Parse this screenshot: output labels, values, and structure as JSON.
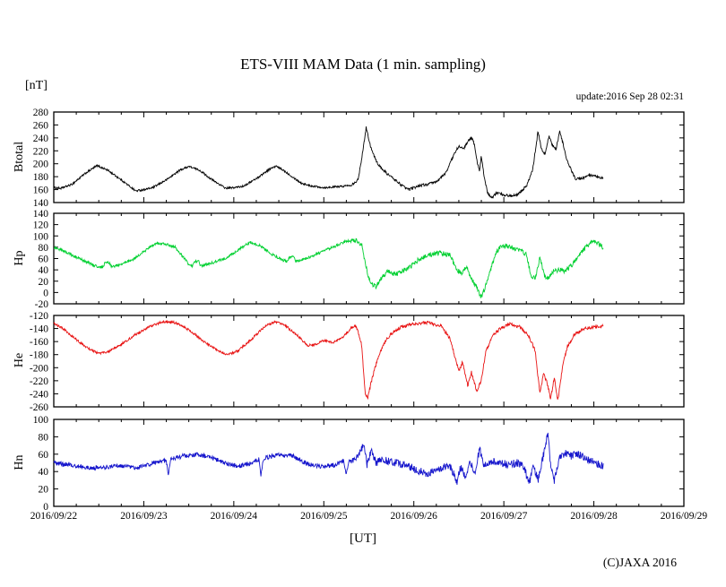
{
  "title": "ETS-VIII MAM Data (1 min. sampling)",
  "unit_label": "[nT]",
  "update_label": "update:2016 Sep 28 02:31",
  "x_axis_label": "[UT]",
  "copyright": "(C)JAXA 2016",
  "chart_data": {
    "type": "line",
    "title": "ETS-VIII MAM Data (1 min. sampling)",
    "xlabel": "[UT]",
    "unit": "[nT]",
    "grid": false,
    "legend_position": "none",
    "x_unit": "days since 2016/09/22 00:00 UT",
    "x_range_days": [
      0,
      7
    ],
    "x_tick_labels": [
      "2016/09/22",
      "2016/09/23",
      "2016/09/24",
      "2016/09/25",
      "2016/09/26",
      "2016/09/27",
      "2016/09/28",
      "2016/09/29"
    ],
    "x_major_tick_days": 1,
    "x_minor_tick_days": 0.25,
    "data_end_day": 6.105,
    "disturbance_start_day": 3.3,
    "panels": [
      {
        "name": "Btotal",
        "color": "#000000",
        "ylim": [
          140,
          280
        ],
        "ytick_step": 20,
        "noise_base": 1.5,
        "noise_disturbed_factor": 1.4,
        "keypoints": [
          [
            0,
            163
          ],
          [
            0.08,
            162
          ],
          [
            0.2,
            168
          ],
          [
            0.35,
            185
          ],
          [
            0.48,
            197
          ],
          [
            0.6,
            190
          ],
          [
            0.75,
            175
          ],
          [
            0.91,
            158
          ],
          [
            1.0,
            160
          ],
          [
            1.1,
            163
          ],
          [
            1.25,
            175
          ],
          [
            1.4,
            190
          ],
          [
            1.5,
            196
          ],
          [
            1.62,
            190
          ],
          [
            1.75,
            176
          ],
          [
            1.91,
            162
          ],
          [
            2.0,
            163
          ],
          [
            2.1,
            165
          ],
          [
            2.25,
            177
          ],
          [
            2.4,
            192
          ],
          [
            2.47,
            196
          ],
          [
            2.55,
            190
          ],
          [
            2.65,
            180
          ],
          [
            2.75,
            170
          ],
          [
            2.85,
            166
          ],
          [
            3.0,
            163
          ],
          [
            3.1,
            164
          ],
          [
            3.2,
            165
          ],
          [
            3.3,
            167
          ],
          [
            3.38,
            175
          ],
          [
            3.44,
            225
          ],
          [
            3.47,
            257
          ],
          [
            3.5,
            238
          ],
          [
            3.53,
            222
          ],
          [
            3.58,
            205
          ],
          [
            3.62,
            196
          ],
          [
            3.7,
            185
          ],
          [
            3.8,
            174
          ],
          [
            3.9,
            163
          ],
          [
            3.95,
            160
          ],
          [
            4.05,
            166
          ],
          [
            4.15,
            168
          ],
          [
            4.25,
            172
          ],
          [
            4.35,
            185
          ],
          [
            4.45,
            215
          ],
          [
            4.5,
            228
          ],
          [
            4.55,
            222
          ],
          [
            4.6,
            235
          ],
          [
            4.65,
            240
          ],
          [
            4.68,
            225
          ],
          [
            4.7,
            205
          ],
          [
            4.73,
            190
          ],
          [
            4.75,
            212
          ],
          [
            4.78,
            180
          ],
          [
            4.82,
            155
          ],
          [
            4.87,
            147
          ],
          [
            4.92,
            155
          ],
          [
            5.0,
            152
          ],
          [
            5.08,
            150
          ],
          [
            5.15,
            153
          ],
          [
            5.25,
            165
          ],
          [
            5.32,
            190
          ],
          [
            5.38,
            250
          ],
          [
            5.42,
            222
          ],
          [
            5.46,
            215
          ],
          [
            5.5,
            243
          ],
          [
            5.54,
            228
          ],
          [
            5.58,
            222
          ],
          [
            5.62,
            250
          ],
          [
            5.66,
            230
          ],
          [
            5.7,
            205
          ],
          [
            5.75,
            190
          ],
          [
            5.8,
            176
          ],
          [
            5.88,
            178
          ],
          [
            5.95,
            182
          ],
          [
            6.02,
            180
          ],
          [
            6.105,
            177
          ]
        ]
      },
      {
        "name": "Hp",
        "color": "#00d030",
        "ylim": [
          -20,
          140
        ],
        "ytick_step": 20,
        "noise_base": 2.4,
        "noise_disturbed_factor": 1.8,
        "keypoints": [
          [
            0,
            80
          ],
          [
            0.1,
            74
          ],
          [
            0.2,
            66
          ],
          [
            0.35,
            55
          ],
          [
            0.48,
            46
          ],
          [
            0.55,
            45
          ],
          [
            0.57,
            53
          ],
          [
            0.62,
            53
          ],
          [
            0.64,
            45
          ],
          [
            0.75,
            50
          ],
          [
            0.9,
            60
          ],
          [
            1.05,
            78
          ],
          [
            1.15,
            87
          ],
          [
            1.25,
            85
          ],
          [
            1.35,
            80
          ],
          [
            1.5,
            50
          ],
          [
            1.54,
            47
          ],
          [
            1.56,
            55
          ],
          [
            1.61,
            55
          ],
          [
            1.63,
            47
          ],
          [
            1.75,
            52
          ],
          [
            1.9,
            60
          ],
          [
            2.05,
            75
          ],
          [
            2.18,
            89
          ],
          [
            2.3,
            82
          ],
          [
            2.45,
            65
          ],
          [
            2.55,
            57
          ],
          [
            2.6,
            55
          ],
          [
            2.62,
            63
          ],
          [
            2.67,
            63
          ],
          [
            2.69,
            55
          ],
          [
            2.8,
            60
          ],
          [
            2.95,
            70
          ],
          [
            3.1,
            80
          ],
          [
            3.25,
            91
          ],
          [
            3.35,
            93
          ],
          [
            3.42,
            85
          ],
          [
            3.47,
            45
          ],
          [
            3.52,
            15
          ],
          [
            3.58,
            10
          ],
          [
            3.65,
            28
          ],
          [
            3.72,
            38
          ],
          [
            3.78,
            32
          ],
          [
            3.85,
            36
          ],
          [
            3.95,
            44
          ],
          [
            4.05,
            58
          ],
          [
            4.15,
            66
          ],
          [
            4.3,
            70
          ],
          [
            4.4,
            66
          ],
          [
            4.48,
            40
          ],
          [
            4.53,
            35
          ],
          [
            4.58,
            45
          ],
          [
            4.64,
            25
          ],
          [
            4.7,
            8
          ],
          [
            4.75,
            -8
          ],
          [
            4.8,
            12
          ],
          [
            4.85,
            40
          ],
          [
            4.92,
            72
          ],
          [
            4.98,
            83
          ],
          [
            5.08,
            80
          ],
          [
            5.18,
            74
          ],
          [
            5.25,
            68
          ],
          [
            5.3,
            30
          ],
          [
            5.35,
            25
          ],
          [
            5.4,
            62
          ],
          [
            5.45,
            30
          ],
          [
            5.5,
            25
          ],
          [
            5.55,
            38
          ],
          [
            5.62,
            40
          ],
          [
            5.68,
            38
          ],
          [
            5.75,
            48
          ],
          [
            5.85,
            68
          ],
          [
            5.93,
            84
          ],
          [
            6.0,
            90
          ],
          [
            6.06,
            85
          ],
          [
            6.105,
            79
          ]
        ]
      },
      {
        "name": "He",
        "color": "#e81212",
        "ylim": [
          -260,
          -120
        ],
        "ytick_step": 20,
        "noise_base": 1.8,
        "noise_disturbed_factor": 1.4,
        "keypoints": [
          [
            0,
            -132
          ],
          [
            0.1,
            -140
          ],
          [
            0.25,
            -157
          ],
          [
            0.4,
            -172
          ],
          [
            0.5,
            -178
          ],
          [
            0.62,
            -175
          ],
          [
            0.75,
            -164
          ],
          [
            0.9,
            -150
          ],
          [
            1.05,
            -138
          ],
          [
            1.2,
            -130
          ],
          [
            1.35,
            -131
          ],
          [
            1.5,
            -142
          ],
          [
            1.65,
            -158
          ],
          [
            1.8,
            -172
          ],
          [
            1.93,
            -180
          ],
          [
            2.05,
            -174
          ],
          [
            2.2,
            -156
          ],
          [
            2.35,
            -136
          ],
          [
            2.45,
            -130
          ],
          [
            2.55,
            -133
          ],
          [
            2.7,
            -150
          ],
          [
            2.82,
            -166
          ],
          [
            2.92,
            -164
          ],
          [
            3.0,
            -158
          ],
          [
            3.1,
            -162
          ],
          [
            3.2,
            -155
          ],
          [
            3.3,
            -140
          ],
          [
            3.36,
            -136
          ],
          [
            3.42,
            -165
          ],
          [
            3.46,
            -240
          ],
          [
            3.49,
            -246
          ],
          [
            3.53,
            -220
          ],
          [
            3.6,
            -185
          ],
          [
            3.68,
            -160
          ],
          [
            3.75,
            -148
          ],
          [
            3.85,
            -138
          ],
          [
            4.0,
            -133
          ],
          [
            4.15,
            -131
          ],
          [
            4.3,
            -136
          ],
          [
            4.4,
            -155
          ],
          [
            4.45,
            -180
          ],
          [
            4.5,
            -205
          ],
          [
            4.54,
            -192
          ],
          [
            4.6,
            -228
          ],
          [
            4.64,
            -207
          ],
          [
            4.7,
            -237
          ],
          [
            4.75,
            -218
          ],
          [
            4.8,
            -175
          ],
          [
            4.88,
            -150
          ],
          [
            4.98,
            -138
          ],
          [
            5.08,
            -133
          ],
          [
            5.18,
            -138
          ],
          [
            5.28,
            -152
          ],
          [
            5.35,
            -175
          ],
          [
            5.4,
            -240
          ],
          [
            5.44,
            -210
          ],
          [
            5.48,
            -222
          ],
          [
            5.52,
            -248
          ],
          [
            5.56,
            -215
          ],
          [
            5.6,
            -250
          ],
          [
            5.65,
            -200
          ],
          [
            5.7,
            -170
          ],
          [
            5.78,
            -150
          ],
          [
            5.88,
            -141
          ],
          [
            5.98,
            -138
          ],
          [
            6.105,
            -136
          ]
        ]
      },
      {
        "name": "Hn",
        "color": "#1515cc",
        "ylim": [
          0,
          100
        ],
        "ytick_step": 20,
        "noise_base": 2.6,
        "noise_disturbed_factor": 1.7,
        "keypoints": [
          [
            0,
            50
          ],
          [
            0.15,
            48
          ],
          [
            0.35,
            45
          ],
          [
            0.5,
            44
          ],
          [
            0.7,
            47
          ],
          [
            0.9,
            44
          ],
          [
            1.05,
            48
          ],
          [
            1.2,
            52
          ],
          [
            1.25,
            53
          ],
          [
            1.27,
            36
          ],
          [
            1.3,
            54
          ],
          [
            1.45,
            58
          ],
          [
            1.6,
            60
          ],
          [
            1.75,
            56
          ],
          [
            1.9,
            50
          ],
          [
            2.05,
            46
          ],
          [
            2.2,
            50
          ],
          [
            2.28,
            54
          ],
          [
            2.3,
            36
          ],
          [
            2.33,
            55
          ],
          [
            2.5,
            60
          ],
          [
            2.65,
            58
          ],
          [
            2.8,
            50
          ],
          [
            2.95,
            46
          ],
          [
            3.1,
            47
          ],
          [
            3.22,
            52
          ],
          [
            3.25,
            36
          ],
          [
            3.28,
            53
          ],
          [
            3.38,
            56
          ],
          [
            3.44,
            72
          ],
          [
            3.48,
            48
          ],
          [
            3.53,
            64
          ],
          [
            3.58,
            50
          ],
          [
            3.65,
            54
          ],
          [
            3.75,
            51
          ],
          [
            3.85,
            49
          ],
          [
            3.95,
            46
          ],
          [
            4.05,
            41
          ],
          [
            4.15,
            38
          ],
          [
            4.25,
            41
          ],
          [
            4.35,
            47
          ],
          [
            4.42,
            43
          ],
          [
            4.48,
            28
          ],
          [
            4.52,
            45
          ],
          [
            4.57,
            34
          ],
          [
            4.62,
            50
          ],
          [
            4.68,
            40
          ],
          [
            4.73,
            66
          ],
          [
            4.78,
            48
          ],
          [
            4.85,
            52
          ],
          [
            4.95,
            50
          ],
          [
            5.05,
            48
          ],
          [
            5.15,
            50
          ],
          [
            5.22,
            46
          ],
          [
            5.28,
            26
          ],
          [
            5.33,
            46
          ],
          [
            5.38,
            30
          ],
          [
            5.43,
            54
          ],
          [
            5.49,
            85
          ],
          [
            5.52,
            46
          ],
          [
            5.56,
            30
          ],
          [
            5.62,
            56
          ],
          [
            5.68,
            62
          ],
          [
            5.75,
            58
          ],
          [
            5.82,
            60
          ],
          [
            5.9,
            56
          ],
          [
            6.0,
            51
          ],
          [
            6.105,
            46
          ]
        ]
      }
    ]
  }
}
